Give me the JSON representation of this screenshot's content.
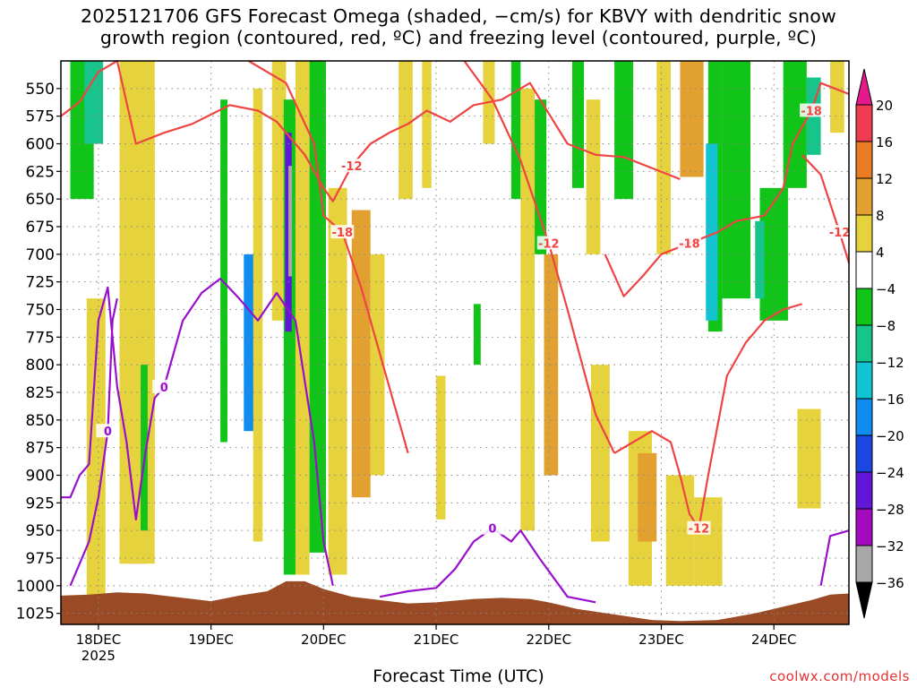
{
  "title_line1": "2025121706 GFS Forecast Omega (shaded, −cm/s) for KBVY with dendritic snow",
  "title_line2": "growth region (contoured, red, ºC) and freezing level (contoured, purple, ºC)",
  "credit": "coolwx.com/models",
  "colors": {
    "frame": "#000000",
    "grid": "#888888",
    "dgz_contour": "#ee4444",
    "freezing_contour": "#9910cc",
    "terrain": "#9a4a24"
  },
  "chart_data": {
    "type": "heatmap",
    "title": "2025121706 GFS Forecast Omega (shaded, −cm/s) for KBVY",
    "xlabel": "Forecast Time (UTC)",
    "ylabel": "",
    "x_range_hours_from_18DEC00Z": [
      -8,
      160
    ],
    "y_range_hPa": [
      525,
      1035
    ],
    "x_ticks": [
      {
        "label": "18DEC",
        "sub": "2025",
        "hour": 0
      },
      {
        "label": "19DEC",
        "sub": "",
        "hour": 24
      },
      {
        "label": "20DEC",
        "sub": "",
        "hour": 48
      },
      {
        "label": "21DEC",
        "sub": "",
        "hour": 72
      },
      {
        "label": "22DEC",
        "sub": "",
        "hour": 96
      },
      {
        "label": "23DEC",
        "sub": "",
        "hour": 120
      },
      {
        "label": "24DEC",
        "sub": "",
        "hour": 144
      }
    ],
    "y_ticks": [
      550,
      575,
      600,
      625,
      650,
      675,
      700,
      725,
      750,
      775,
      800,
      825,
      850,
      875,
      900,
      925,
      950,
      975,
      1000,
      1025
    ],
    "colorbar": {
      "labels": [
        "20",
        "16",
        "12",
        "8",
        "4",
        "−4",
        "−8",
        "−12",
        "−16",
        "−20",
        "−24",
        "−28",
        "−32",
        "−36"
      ],
      "bins": [
        {
          "from": 16,
          "to": 20,
          "color": "#f03c50"
        },
        {
          "from": 12,
          "to": 16,
          "color": "#ea7c24"
        },
        {
          "from": 8,
          "to": 12,
          "color": "#e2a030"
        },
        {
          "from": 4,
          "to": 8,
          "color": "#e6d23c"
        },
        {
          "from": -4,
          "to": 4,
          "color": "#ffffff"
        },
        {
          "from": -8,
          "to": -4,
          "color": "#10c418"
        },
        {
          "from": -12,
          "to": -8,
          "color": "#16c48c"
        },
        {
          "from": -16,
          "to": -12,
          "color": "#12c4d2"
        },
        {
          "from": -20,
          "to": -16,
          "color": "#108cf0"
        },
        {
          "from": -24,
          "to": -20,
          "color": "#1c46e0"
        },
        {
          "from": -28,
          "to": -24,
          "color": "#6216d8"
        },
        {
          "from": -32,
          "to": -28,
          "color": "#a40ac0"
        },
        {
          "from": -36,
          "to": -32,
          "color": "#a8a8a8"
        }
      ],
      "top_extend_color": "#e41a8c",
      "bottom_extend_color": "#000000"
    },
    "omega_shading": [
      {
        "t": 6.5,
        "w": 3.5,
        "p1": 525,
        "p2": 980,
        "value": 17
      },
      {
        "t": 4.5,
        "w": 7.5,
        "p1": 525,
        "p2": 980,
        "value": 6
      },
      {
        "t": 9.5,
        "w": 2.5,
        "p1": 560,
        "p2": 950,
        "value": 6
      },
      {
        "t": -2.5,
        "w": 4,
        "p1": 740,
        "p2": 1010,
        "value": 6
      },
      {
        "t": -6,
        "w": 5,
        "p1": 525,
        "p2": 650,
        "value": -6
      },
      {
        "t": -3,
        "w": 4,
        "p1": 525,
        "p2": 600,
        "value": -10
      },
      {
        "t": 9,
        "w": 1.5,
        "p1": 800,
        "p2": 950,
        "value": -6
      },
      {
        "t": 26,
        "w": 1.5,
        "p1": 560,
        "p2": 870,
        "value": -6
      },
      {
        "t": 31,
        "w": 2.5,
        "p1": 700,
        "p2": 860,
        "value": -18
      },
      {
        "t": 33,
        "w": 2,
        "p1": 550,
        "p2": 960,
        "value": 6
      },
      {
        "t": 37,
        "w": 3,
        "p1": 525,
        "p2": 760,
        "value": 6
      },
      {
        "t": 39.5,
        "w": 3.5,
        "p1": 560,
        "p2": 990,
        "value": -8
      },
      {
        "t": 39.8,
        "w": 1.4,
        "p1": 590,
        "p2": 770,
        "value": -26
      },
      {
        "t": 40.5,
        "w": 0.8,
        "p1": 620,
        "p2": 720,
        "value": -34
      },
      {
        "t": 42,
        "w": 3,
        "p1": 525,
        "p2": 990,
        "value": 6
      },
      {
        "t": 45,
        "w": 3.5,
        "p1": 525,
        "p2": 970,
        "value": -6
      },
      {
        "t": 49,
        "w": 4,
        "p1": 640,
        "p2": 990,
        "value": 6
      },
      {
        "t": 54,
        "w": 4,
        "p1": 660,
        "p2": 920,
        "value": 10
      },
      {
        "t": 58,
        "w": 3,
        "p1": 700,
        "p2": 900,
        "value": 6
      },
      {
        "t": 64,
        "w": 3,
        "p1": 525,
        "p2": 650,
        "value": 6
      },
      {
        "t": 69,
        "w": 2,
        "p1": 525,
        "p2": 640,
        "value": 6
      },
      {
        "t": 72,
        "w": 2,
        "p1": 810,
        "p2": 940,
        "value": 6
      },
      {
        "t": 80,
        "w": 1.5,
        "p1": 745,
        "p2": 800,
        "value": -6
      },
      {
        "t": 82,
        "w": 2.5,
        "p1": 525,
        "p2": 600,
        "value": 6
      },
      {
        "t": 88,
        "w": 2,
        "p1": 525,
        "p2": 650,
        "value": -6
      },
      {
        "t": 90,
        "w": 3,
        "p1": 550,
        "p2": 950,
        "value": 6
      },
      {
        "t": 93,
        "w": 2.5,
        "p1": 560,
        "p2": 700,
        "value": -6
      },
      {
        "t": 95,
        "w": 3,
        "p1": 700,
        "p2": 900,
        "value": 10
      },
      {
        "t": 101,
        "w": 2.5,
        "p1": 525,
        "p2": 640,
        "value": -6
      },
      {
        "t": 104,
        "w": 3,
        "p1": 560,
        "p2": 700,
        "value": 6
      },
      {
        "t": 105,
        "w": 4,
        "p1": 800,
        "p2": 960,
        "value": 6
      },
      {
        "t": 110,
        "w": 4,
        "p1": 525,
        "p2": 650,
        "value": -6
      },
      {
        "t": 113,
        "w": 5,
        "p1": 860,
        "p2": 1000,
        "value": 6
      },
      {
        "t": 115,
        "w": 4,
        "p1": 880,
        "p2": 960,
        "value": 10
      },
      {
        "t": 119,
        "w": 3,
        "p1": 525,
        "p2": 700,
        "value": 6
      },
      {
        "t": 121,
        "w": 6,
        "p1": 900,
        "p2": 1000,
        "value": 6
      },
      {
        "t": 124,
        "w": 5,
        "p1": 525,
        "p2": 630,
        "value": 10
      },
      {
        "t": 130,
        "w": 3,
        "p1": 525,
        "p2": 770,
        "value": -6
      },
      {
        "t": 129.5,
        "w": 2.5,
        "p1": 600,
        "p2": 760,
        "value": -14
      },
      {
        "t": 133,
        "w": 6,
        "p1": 525,
        "p2": 740,
        "value": -6
      },
      {
        "t": 127,
        "w": 6,
        "p1": 920,
        "p2": 1000,
        "value": 6
      },
      {
        "t": 141,
        "w": 6,
        "p1": 640,
        "p2": 760,
        "value": -6
      },
      {
        "t": 140,
        "w": 2,
        "p1": 670,
        "p2": 740,
        "value": -10
      },
      {
        "t": 146,
        "w": 5,
        "p1": 525,
        "p2": 640,
        "value": -6
      },
      {
        "t": 151,
        "w": 3,
        "p1": 540,
        "p2": 610,
        "value": -10
      },
      {
        "t": 149,
        "w": 5,
        "p1": 840,
        "p2": 930,
        "value": 6
      },
      {
        "t": 156,
        "w": 3,
        "p1": 525,
        "p2": 590,
        "value": 6
      }
    ],
    "dgz_contours": [
      {
        "label": "-12",
        "points": [
          [
            -8,
            575
          ],
          [
            -4,
            562
          ],
          [
            0,
            535
          ],
          [
            4,
            525
          ],
          [
            8,
            600
          ],
          [
            14,
            590
          ],
          [
            20,
            582
          ],
          [
            28,
            565
          ],
          [
            34,
            570
          ],
          [
            38,
            580
          ],
          [
            44,
            610
          ],
          [
            48,
            640
          ],
          [
            50,
            652
          ],
          [
            54,
            620
          ],
          [
            58,
            600
          ],
          [
            62,
            590
          ],
          [
            66,
            582
          ],
          [
            70,
            570
          ],
          [
            75,
            580
          ],
          [
            80,
            565
          ],
          [
            86,
            560
          ],
          [
            92,
            545
          ],
          [
            100,
            600
          ],
          [
            106,
            610
          ],
          [
            112,
            612
          ],
          [
            118,
            622
          ],
          [
            124,
            632
          ]
        ]
      },
      {
        "label": "-18",
        "points": [
          [
            32,
            525
          ],
          [
            40,
            545
          ],
          [
            46,
            600
          ],
          [
            48,
            665
          ],
          [
            52,
            680
          ],
          [
            56,
            730
          ],
          [
            60,
            790
          ],
          [
            64,
            850
          ],
          [
            66,
            880
          ]
        ]
      },
      {
        "label": "-12",
        "points": [
          [
            78,
            525
          ],
          [
            84,
            560
          ],
          [
            90,
            615
          ],
          [
            96,
            690
          ],
          [
            100,
            750
          ],
          [
            106,
            845
          ],
          [
            110,
            880
          ]
        ]
      },
      {
        "label": "-18",
        "points": [
          [
            108,
            700
          ],
          [
            112,
            738
          ],
          [
            116,
            720
          ],
          [
            120,
            700
          ],
          [
            126,
            690
          ],
          [
            132,
            680
          ],
          [
            136,
            670
          ],
          [
            142,
            665
          ]
        ]
      },
      {
        "label": "-12",
        "points": [
          [
            110,
            880
          ],
          [
            114,
            870
          ],
          [
            118,
            860
          ],
          [
            122,
            870
          ],
          [
            124,
            900
          ],
          [
            126,
            935
          ],
          [
            128,
            948
          ],
          [
            130,
            900
          ],
          [
            134,
            810
          ],
          [
            138,
            780
          ],
          [
            142,
            760
          ],
          [
            146,
            750
          ],
          [
            150,
            745
          ]
        ]
      },
      {
        "label": "-18",
        "points": [
          [
            142,
            665
          ],
          [
            146,
            640
          ],
          [
            148,
            600
          ],
          [
            152,
            570
          ],
          [
            154,
            545
          ],
          [
            160,
            555
          ]
        ]
      },
      {
        "label": "-12",
        "points": [
          [
            150,
            610
          ],
          [
            154,
            628
          ],
          [
            158,
            680
          ],
          [
            160,
            708
          ]
        ]
      }
    ],
    "freezing_contours": [
      {
        "label": "0",
        "points": [
          [
            -8,
            920
          ],
          [
            -6,
            920
          ],
          [
            -4,
            900
          ],
          [
            -2,
            890
          ],
          [
            0,
            760
          ],
          [
            2,
            730
          ],
          [
            4,
            820
          ],
          [
            6,
            870
          ],
          [
            8,
            940
          ],
          [
            10,
            880
          ],
          [
            12,
            830
          ],
          [
            14,
            820
          ],
          [
            16,
            790
          ],
          [
            18,
            760
          ],
          [
            22,
            735
          ],
          [
            26,
            722
          ],
          [
            30,
            740
          ],
          [
            34,
            760
          ],
          [
            38,
            735
          ],
          [
            42,
            760
          ],
          [
            46,
            870
          ],
          [
            48,
            960
          ],
          [
            50,
            1000
          ]
        ]
      },
      {
        "label": "0",
        "points": [
          [
            -6,
            1000
          ],
          [
            -2,
            960
          ],
          [
            0,
            920
          ],
          [
            2,
            860
          ],
          [
            3,
            760
          ],
          [
            4,
            740
          ]
        ]
      },
      {
        "label": "0",
        "points": [
          [
            60,
            1010
          ],
          [
            66,
            1005
          ],
          [
            72,
            1002
          ],
          [
            76,
            985
          ],
          [
            80,
            960
          ],
          [
            84,
            948
          ],
          [
            88,
            960
          ],
          [
            90,
            950
          ],
          [
            94,
            975
          ],
          [
            100,
            1010
          ],
          [
            106,
            1015
          ]
        ]
      },
      {
        "label": "",
        "points": [
          [
            154,
            1000
          ],
          [
            156,
            955
          ],
          [
            160,
            950
          ]
        ]
      }
    ],
    "terrain_top_hPa": [
      [
        -8,
        1009
      ],
      [
        -2,
        1008
      ],
      [
        4,
        1006
      ],
      [
        10,
        1007
      ],
      [
        18,
        1011
      ],
      [
        24,
        1014
      ],
      [
        30,
        1009
      ],
      [
        36,
        1005
      ],
      [
        40,
        996
      ],
      [
        44,
        996
      ],
      [
        48,
        1003
      ],
      [
        54,
        1010
      ],
      [
        60,
        1013
      ],
      [
        66,
        1016
      ],
      [
        72,
        1015
      ],
      [
        80,
        1012
      ],
      [
        86,
        1011
      ],
      [
        92,
        1012
      ],
      [
        96,
        1015
      ],
      [
        102,
        1021
      ],
      [
        110,
        1026
      ],
      [
        118,
        1031
      ],
      [
        124,
        1032
      ],
      [
        132,
        1031
      ],
      [
        140,
        1025
      ],
      [
        146,
        1019
      ],
      [
        152,
        1013
      ],
      [
        156,
        1008
      ],
      [
        160,
        1007
      ]
    ]
  }
}
